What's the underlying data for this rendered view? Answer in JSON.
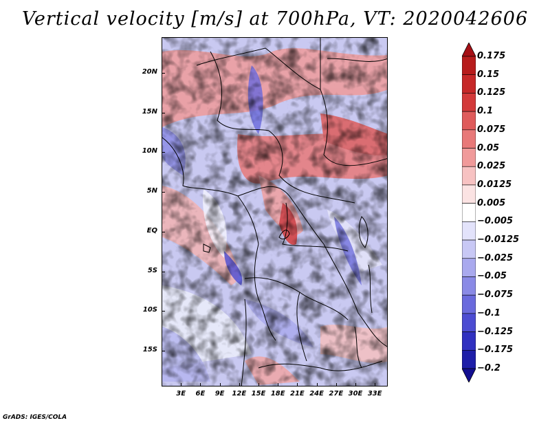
{
  "title": "Vertical velocity [m/s] at 700hPa, VT: 2020042606",
  "credit": "GrADS: IGES/COLA",
  "map": {
    "region": "Central Africa",
    "variable": "vertical velocity",
    "units": "m/s",
    "level": "700hPa",
    "lat_range": [
      -19.5,
      24.5
    ],
    "lon_range": [
      0,
      35
    ],
    "lat_ticks": [
      "20N",
      "15N",
      "10N",
      "5N",
      "EQ",
      "5S",
      "10S",
      "15S"
    ],
    "lat_values": [
      20,
      15,
      10,
      5,
      0,
      -5,
      -10,
      -15
    ],
    "lon_ticks": [
      "3E",
      "6E",
      "9E",
      "12E",
      "15E",
      "18E",
      "21E",
      "24E",
      "27E",
      "30E",
      "33E"
    ],
    "lon_values": [
      3,
      6,
      9,
      12,
      15,
      18,
      21,
      24,
      27,
      30,
      33
    ]
  },
  "colorbar": {
    "labels": [
      "0.175",
      "0.15",
      "0.125",
      "0.1",
      "0.075",
      "0.05",
      "0.025",
      "0.0125",
      "0.005",
      "−0.005",
      "−0.0125",
      "−0.025",
      "−0.05",
      "−0.075",
      "−0.1",
      "−0.125",
      "−0.175",
      "−0.2"
    ],
    "colors": [
      "#a50f15",
      "#b71c1c",
      "#c62828",
      "#d33a3a",
      "#df5b5b",
      "#e87979",
      "#f09a9a",
      "#f7c2c2",
      "#fbe3e3",
      "#ffffff",
      "#e3e3fb",
      "#c8c8f5",
      "#a9a9ee",
      "#8a8ae6",
      "#6a6add",
      "#4c4cd2",
      "#3030c0",
      "#1e1ea8",
      "#120e90"
    ]
  }
}
